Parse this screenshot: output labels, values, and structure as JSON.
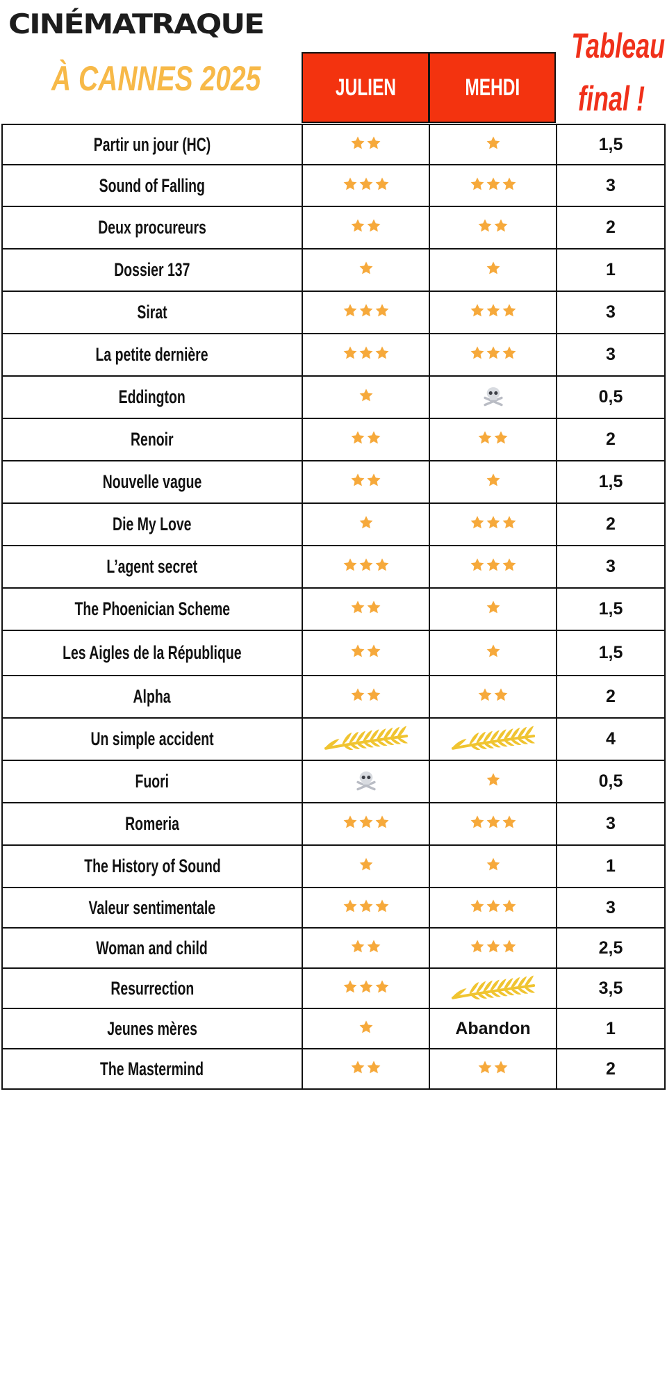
{
  "header": {
    "logo": "CINÉMATRAQUE",
    "subtitle": "À CANNES 2025",
    "final_title_line1": "Tableau",
    "final_title_line2": "final !",
    "col_julien": "JULIEN",
    "col_mehdi": "MEHDI"
  },
  "colors": {
    "accent": "#f3330f",
    "star": "#f6a93b",
    "subtitle": "#f7b948",
    "palm": "#f0c430"
  },
  "films": [
    {
      "title": "Partir un jour (HC)",
      "julien": {
        "type": "stars",
        "count": 2
      },
      "mehdi": {
        "type": "stars",
        "count": 1
      },
      "final": "1,5"
    },
    {
      "title": "Sound of Falling",
      "julien": {
        "type": "stars",
        "count": 3
      },
      "mehdi": {
        "type": "stars",
        "count": 3
      },
      "final": "3"
    },
    {
      "title": "Deux procureurs",
      "julien": {
        "type": "stars",
        "count": 2
      },
      "mehdi": {
        "type": "stars",
        "count": 2
      },
      "final": "2"
    },
    {
      "title": "Dossier 137",
      "julien": {
        "type": "stars",
        "count": 1
      },
      "mehdi": {
        "type": "stars",
        "count": 1
      },
      "final": "1"
    },
    {
      "title": "Sirat",
      "julien": {
        "type": "stars",
        "count": 3
      },
      "mehdi": {
        "type": "stars",
        "count": 3
      },
      "final": "3"
    },
    {
      "title": "La petite dernière",
      "julien": {
        "type": "stars",
        "count": 3
      },
      "mehdi": {
        "type": "stars",
        "count": 3
      },
      "final": "3"
    },
    {
      "title": "Eddington",
      "julien": {
        "type": "stars",
        "count": 1
      },
      "mehdi": {
        "type": "skull"
      },
      "final": "0,5"
    },
    {
      "title": "Renoir",
      "julien": {
        "type": "stars",
        "count": 2
      },
      "mehdi": {
        "type": "stars",
        "count": 2
      },
      "final": "2"
    },
    {
      "title": "Nouvelle vague",
      "julien": {
        "type": "stars",
        "count": 2
      },
      "mehdi": {
        "type": "stars",
        "count": 1
      },
      "final": "1,5"
    },
    {
      "title": "Die My Love",
      "julien": {
        "type": "stars",
        "count": 1
      },
      "mehdi": {
        "type": "stars",
        "count": 3
      },
      "final": "2"
    },
    {
      "title": "L’agent secret",
      "julien": {
        "type": "stars",
        "count": 3
      },
      "mehdi": {
        "type": "stars",
        "count": 3
      },
      "final": "3"
    },
    {
      "title": "The Phoenician Scheme",
      "julien": {
        "type": "stars",
        "count": 2
      },
      "mehdi": {
        "type": "stars",
        "count": 1
      },
      "final": "1,5"
    },
    {
      "title": "Les Aigles de la République",
      "julien": {
        "type": "stars",
        "count": 2
      },
      "mehdi": {
        "type": "stars",
        "count": 1
      },
      "final": "1,5"
    },
    {
      "title": "Alpha",
      "julien": {
        "type": "stars",
        "count": 2
      },
      "mehdi": {
        "type": "stars",
        "count": 2
      },
      "final": "2"
    },
    {
      "title": "Un simple accident",
      "julien": {
        "type": "palm"
      },
      "mehdi": {
        "type": "palm"
      },
      "final": "4"
    },
    {
      "title": "Fuori",
      "julien": {
        "type": "skull"
      },
      "mehdi": {
        "type": "stars",
        "count": 1
      },
      "final": "0,5"
    },
    {
      "title": "Romeria",
      "julien": {
        "type": "stars",
        "count": 3
      },
      "mehdi": {
        "type": "stars",
        "count": 3
      },
      "final": "3"
    },
    {
      "title": "The History of Sound",
      "julien": {
        "type": "stars",
        "count": 1
      },
      "mehdi": {
        "type": "stars",
        "count": 1
      },
      "final": "1"
    },
    {
      "title": "Valeur sentimentale",
      "julien": {
        "type": "stars",
        "count": 3
      },
      "mehdi": {
        "type": "stars",
        "count": 3
      },
      "final": "3"
    },
    {
      "title": "Woman and child",
      "julien": {
        "type": "stars",
        "count": 2
      },
      "mehdi": {
        "type": "stars",
        "count": 3
      },
      "final": "2,5"
    },
    {
      "title": "Resurrection",
      "julien": {
        "type": "stars",
        "count": 3
      },
      "mehdi": {
        "type": "palm"
      },
      "final": "3,5"
    },
    {
      "title": "Jeunes mères",
      "julien": {
        "type": "stars",
        "count": 1
      },
      "mehdi": {
        "type": "text",
        "text": "Abandon"
      },
      "final": "1"
    },
    {
      "title": "The Mastermind",
      "julien": {
        "type": "stars",
        "count": 2
      },
      "mehdi": {
        "type": "stars",
        "count": 2
      },
      "final": "2"
    }
  ]
}
